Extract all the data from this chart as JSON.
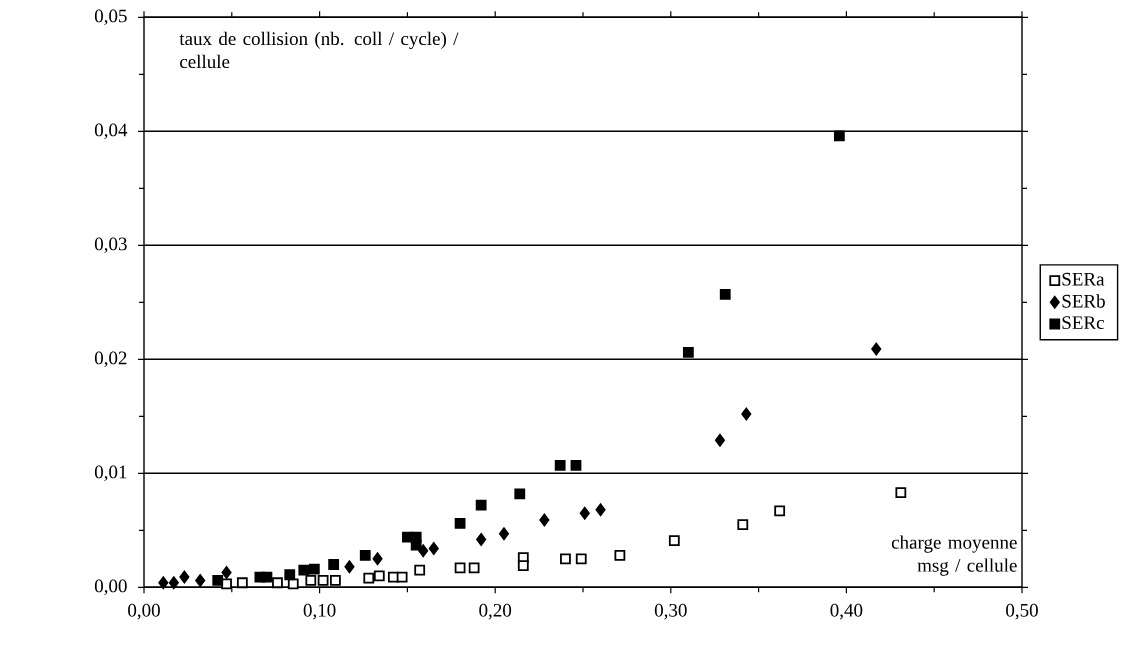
{
  "chart_data": {
    "type": "scatter",
    "xlabel": "charge moyenne msg  / cellule",
    "ylabel": "taux de collision (nb. coll / cycle) / cellule",
    "xlim": [
      0,
      0.5
    ],
    "ylim": [
      0,
      0.05
    ],
    "xticks": [
      {
        "value": 0,
        "label": "0,00"
      },
      {
        "value": 0.1,
        "label": "0,10"
      },
      {
        "value": 0.2,
        "label": "0,20"
      },
      {
        "value": 0.3,
        "label": "0,30"
      },
      {
        "value": 0.4,
        "label": "0,40"
      },
      {
        "value": 0.5,
        "label": "0,50"
      }
    ],
    "yticks": [
      {
        "value": 0,
        "label": "0,00"
      },
      {
        "value": 0.01,
        "label": "0,01"
      },
      {
        "value": 0.02,
        "label": "0,02"
      },
      {
        "value": 0.03,
        "label": "0,03"
      },
      {
        "value": 0.04,
        "label": "0,04"
      },
      {
        "value": 0.05,
        "label": "0,05"
      }
    ],
    "grid": "y",
    "legend": "right",
    "series": [
      {
        "name": "SERa",
        "color": "#000000",
        "marker": "square",
        "x": [
          0.047,
          0.056,
          0.076,
          0.085,
          0.095,
          0.102,
          0.109,
          0.128,
          0.134,
          0.142,
          0.147,
          0.157,
          0.18,
          0.188,
          0.216,
          0.216,
          0.24,
          0.249,
          0.271,
          0.302,
          0.341,
          0.362,
          0.431
        ],
        "values": [
          0.0003,
          0.0004,
          0.0004,
          0.0003,
          0.0006,
          0.0006,
          0.0006,
          0.0008,
          0.001,
          0.0009,
          0.0009,
          0.0015,
          0.0017,
          0.0017,
          0.0026,
          0.0019,
          0.0025,
          0.0025,
          0.0028,
          0.0041,
          0.0055,
          0.0067,
          0.0083
        ]
      },
      {
        "name": "SERb",
        "color": "#000000",
        "marker": "diamond",
        "x": [
          0.011,
          0.017,
          0.023,
          0.032,
          0.047,
          0.117,
          0.133,
          0.159,
          0.165,
          0.192,
          0.205,
          0.228,
          0.251,
          0.26,
          0.328,
          0.343,
          0.417
        ],
        "values": [
          0.0004,
          0.0004,
          0.0009,
          0.0006,
          0.0013,
          0.0018,
          0.0025,
          0.0032,
          0.0034,
          0.0042,
          0.0047,
          0.0059,
          0.0065,
          0.0068,
          0.0129,
          0.0152,
          0.0209
        ]
      },
      {
        "name": "SERc",
        "color": "#000000",
        "marker": "square",
        "x": [
          0.042,
          0.066,
          0.07,
          0.083,
          0.091,
          0.097,
          0.108,
          0.126,
          0.15,
          0.155,
          0.155,
          0.18,
          0.192,
          0.214,
          0.237,
          0.246,
          0.31,
          0.331,
          0.396
        ],
        "values": [
          0.0006,
          0.0009,
          0.0009,
          0.0011,
          0.0015,
          0.0016,
          0.002,
          0.0028,
          0.0044,
          0.0044,
          0.0037,
          0.0056,
          0.0072,
          0.0082,
          0.0107,
          0.0107,
          0.0206,
          0.0257,
          0.0396
        ]
      }
    ]
  }
}
